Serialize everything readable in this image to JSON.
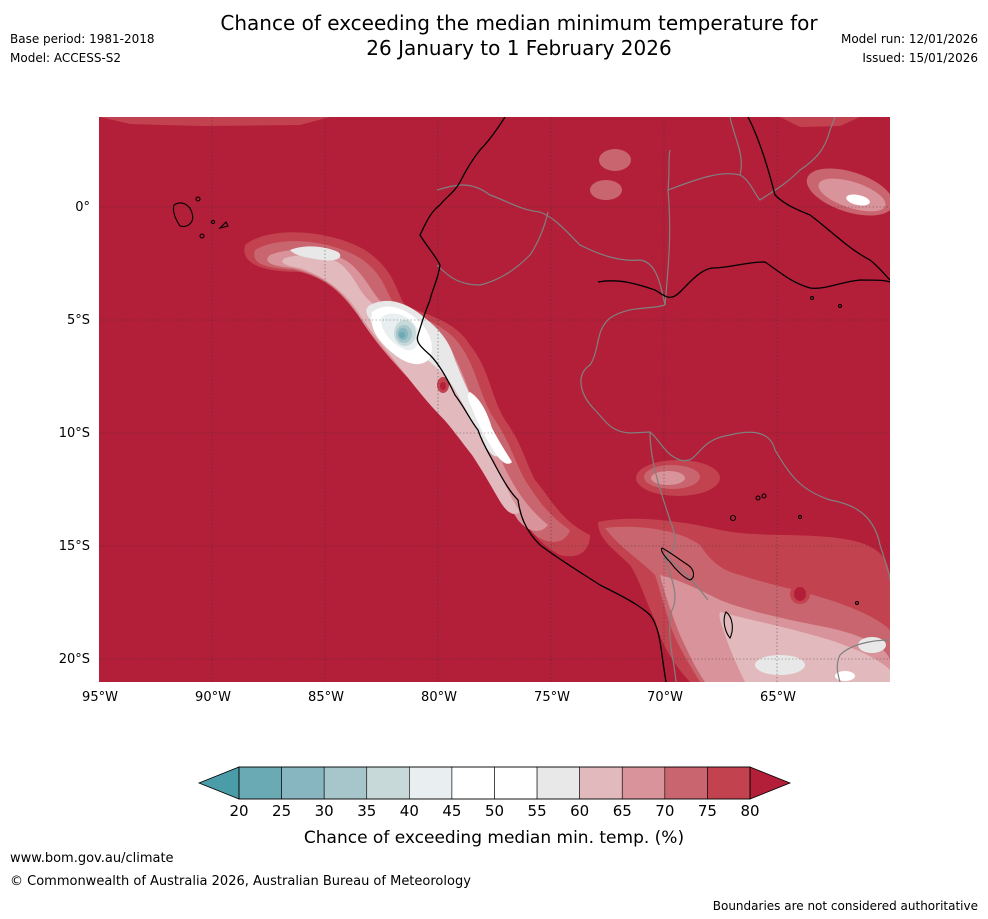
{
  "header": {
    "title_line1": "Chance of exceeding the median minimum temperature for",
    "title_line2": "26 January to 1 February 2026",
    "base_period": "Base period: 1981-2018",
    "model": "Model: ACCESS-S2",
    "model_run": "Model run: 12/01/2026",
    "issued": "Issued: 15/01/2026"
  },
  "map": {
    "region": "western South America and eastern Pacific",
    "lon_range": [
      -95,
      -60
    ],
    "lat_range": [
      -21,
      4
    ],
    "lat_labels": [
      "0°",
      "5°S",
      "10°S",
      "15°S",
      "20°S"
    ],
    "lon_labels": [
      "95°W",
      "90°W",
      "85°W",
      "80°W",
      "75°W",
      "70°W",
      "65°W"
    ],
    "dominant_category": "80+",
    "colors": {
      "above_80": "#b31e39",
      "c75_80": "#c2434f",
      "c70_75": "#c9656e",
      "c65_70": "#d8949a",
      "c60_65": "#e2b9bc",
      "c55_60": "#e8e8e8",
      "c45_55": "#ffffff",
      "c40_45": "#e9eff0",
      "c35_40": "#c8d9d9",
      "c30_35": "#a6c6cb",
      "c25_30": "#87b6c0",
      "c20_25": "#6aaab4",
      "below_20": "#4a9ca8"
    }
  },
  "colorbar": {
    "ticks": [
      "20",
      "25",
      "30",
      "35",
      "40",
      "45",
      "50",
      "55",
      "60",
      "65",
      "70",
      "75",
      "80"
    ],
    "colors": [
      "#6aaab4",
      "#87b6c0",
      "#a6c6cb",
      "#c8d9d9",
      "#e9eff0",
      "#ffffff",
      "#ffffff",
      "#e8e8e8",
      "#e2b9bc",
      "#d8949a",
      "#c9656e",
      "#c2434f"
    ],
    "low_color": "#4a9ca8",
    "high_color": "#b31e39",
    "label": "Chance of exceeding median min. temp. (%)"
  },
  "footer": {
    "url": "www.bom.gov.au/climate",
    "copyright": "© Commonwealth of Australia 2026, Australian Bureau of Meteorology",
    "note": "Boundaries are not considered authoritative"
  }
}
